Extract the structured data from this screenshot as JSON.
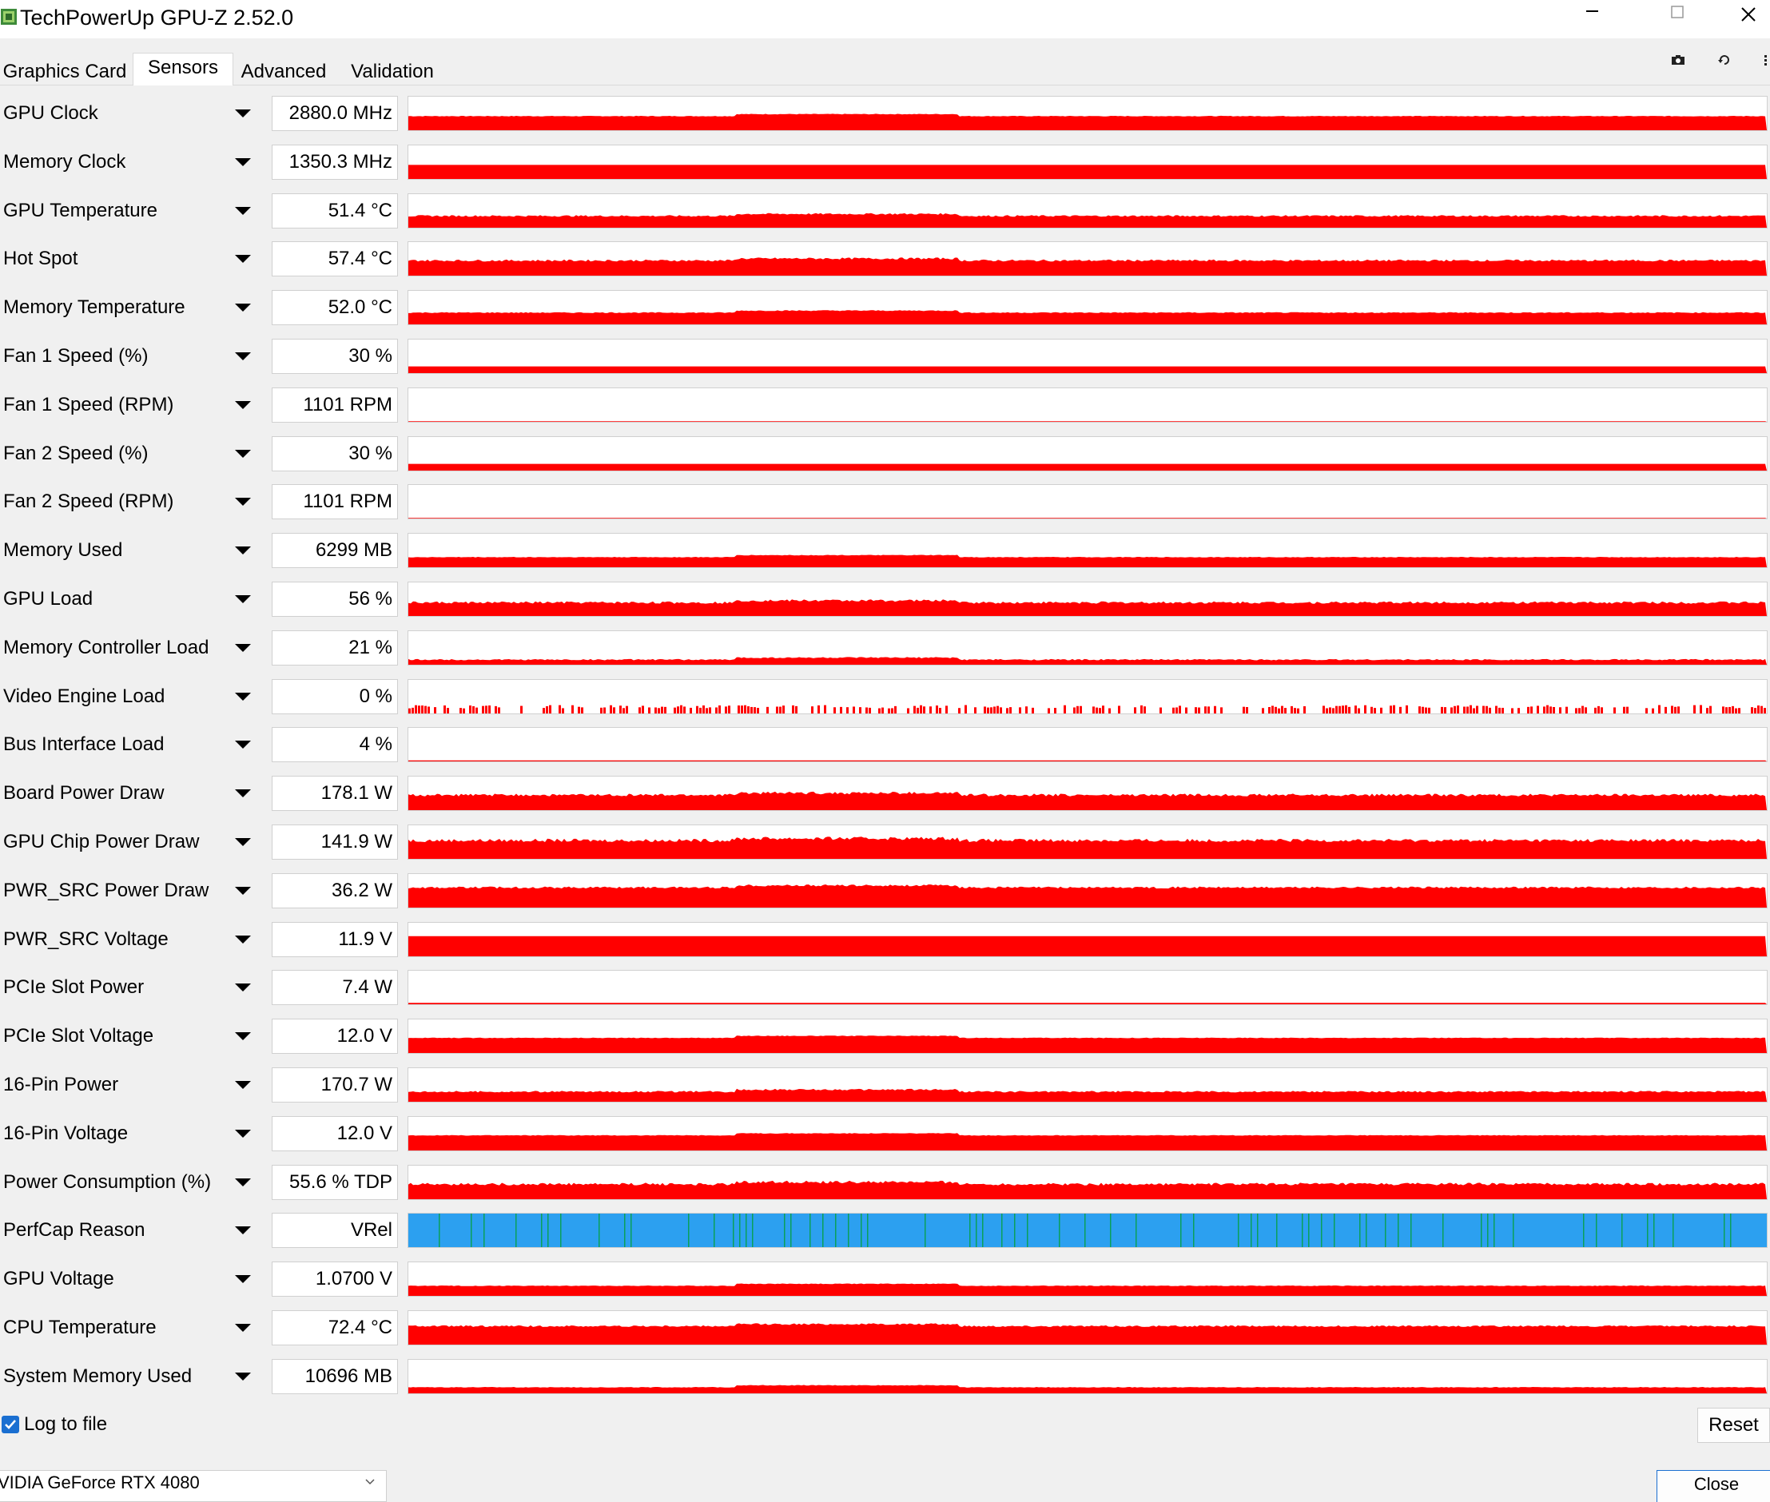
{
  "window": {
    "title": "TechPowerUp GPU-Z 2.52.0",
    "controls": [
      "minimize-icon",
      "maximize-icon",
      "close-icon"
    ]
  },
  "tabs": [
    {
      "label": "Graphics Card",
      "active": false
    },
    {
      "label": "Sensors",
      "active": true
    },
    {
      "label": "Advanced",
      "active": false
    },
    {
      "label": "Validation",
      "active": false
    }
  ],
  "toolbar_icons": [
    "camera-icon",
    "refresh-icon",
    "menu-icon"
  ],
  "colors": {
    "graph_line": "#ff0000",
    "perfcap_fill": "#2ca0f0",
    "perfcap_marks": "#0aa05a",
    "accent": "#1a6fd1"
  },
  "sensors": [
    {
      "name": "GPU Clock",
      "value": "2880.0 MHz",
      "level": 0.42,
      "noise": 0.02,
      "kind": "line"
    },
    {
      "name": "Memory Clock",
      "value": "1350.3 MHz",
      "level": 0.42,
      "noise": 0.0,
      "kind": "line"
    },
    {
      "name": "GPU Temperature",
      "value": "51.4 °C",
      "level": 0.35,
      "noise": 0.05,
      "kind": "line"
    },
    {
      "name": "Hot Spot",
      "value": "57.4 °C",
      "level": 0.45,
      "noise": 0.06,
      "kind": "line"
    },
    {
      "name": "Memory Temperature",
      "value": "52.0 °C",
      "level": 0.35,
      "noise": 0.03,
      "kind": "line"
    },
    {
      "name": "Fan 1 Speed (%)",
      "value": "30 %",
      "level": 0.2,
      "noise": 0.0,
      "kind": "line"
    },
    {
      "name": "Fan 1 Speed (RPM)",
      "value": "1101 RPM",
      "level": 0.02,
      "noise": 0.0,
      "kind": "line"
    },
    {
      "name": "Fan 2 Speed (%)",
      "value": "30 %",
      "level": 0.2,
      "noise": 0.0,
      "kind": "line"
    },
    {
      "name": "Fan 2 Speed (RPM)",
      "value": "1101 RPM",
      "level": 0.02,
      "noise": 0.0,
      "kind": "line"
    },
    {
      "name": "Memory Used",
      "value": "6299 MB",
      "level": 0.3,
      "noise": 0.02,
      "kind": "line"
    },
    {
      "name": "GPU Load",
      "value": "56 %",
      "level": 0.4,
      "noise": 0.07,
      "kind": "line"
    },
    {
      "name": "Memory Controller Load",
      "value": "21 %",
      "level": 0.15,
      "noise": 0.04,
      "kind": "line"
    },
    {
      "name": "Video Engine Load",
      "value": "0 %",
      "level": 0.15,
      "noise": 0.1,
      "kind": "sparse"
    },
    {
      "name": "Bus Interface Load",
      "value": "4 %",
      "level": 0.03,
      "noise": 0.0,
      "kind": "line"
    },
    {
      "name": "Board Power Draw",
      "value": "178.1 W",
      "level": 0.45,
      "noise": 0.08,
      "kind": "line"
    },
    {
      "name": "GPU Chip Power Draw",
      "value": "141.9 W",
      "level": 0.55,
      "noise": 0.1,
      "kind": "line"
    },
    {
      "name": "PWR_SRC Power Draw",
      "value": "36.2 W",
      "level": 0.6,
      "noise": 0.06,
      "kind": "line"
    },
    {
      "name": "PWR_SRC Voltage",
      "value": "11.9 V",
      "level": 0.6,
      "noise": 0.0,
      "kind": "line"
    },
    {
      "name": "PCIe Slot Power",
      "value": "7.4 W",
      "level": 0.04,
      "noise": 0.0,
      "kind": "line"
    },
    {
      "name": "PCIe Slot Voltage",
      "value": "12.0 V",
      "level": 0.45,
      "noise": 0.02,
      "kind": "line"
    },
    {
      "name": "16-Pin Power",
      "value": "170.7 W",
      "level": 0.3,
      "noise": 0.05,
      "kind": "line"
    },
    {
      "name": "16-Pin Voltage",
      "value": "12.0 V",
      "level": 0.45,
      "noise": 0.02,
      "kind": "line"
    },
    {
      "name": "Power Consumption (%)",
      "value": "55.6 % TDP",
      "level": 0.45,
      "noise": 0.08,
      "kind": "line"
    },
    {
      "name": "PerfCap Reason",
      "value": "VRel",
      "level": 1.0,
      "noise": 0.0,
      "kind": "perfcap"
    },
    {
      "name": "GPU Voltage",
      "value": "1.0700 V",
      "level": 0.3,
      "noise": 0.02,
      "kind": "line"
    },
    {
      "name": "CPU Temperature",
      "value": "72.4 °C",
      "level": 0.55,
      "noise": 0.05,
      "kind": "line"
    },
    {
      "name": "System Memory Used",
      "value": "10696 MB",
      "level": 0.18,
      "noise": 0.02,
      "kind": "line"
    }
  ],
  "footer": {
    "log_to_file_label": "Log to file",
    "log_to_file_checked": true,
    "reset_label": "Reset",
    "gpu_selected": "VIDIA GeForce RTX 4080",
    "close_label": "Close"
  }
}
